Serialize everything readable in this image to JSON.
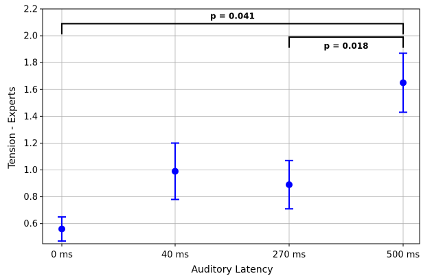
{
  "chart_data": {
    "type": "scatter",
    "categories": [
      "0 ms",
      "40 ms",
      "270 ms",
      "500 ms"
    ],
    "series": [
      {
        "values": [
          0.56,
          0.99,
          0.89,
          1.65
        ],
        "err_low": [
          0.47,
          0.78,
          0.71,
          1.43
        ],
        "err_high": [
          0.65,
          1.2,
          1.07,
          1.87
        ],
        "color": "#0000ff"
      }
    ],
    "xlabel": "Auditory Latency",
    "ylabel": "Tension - Experts",
    "ylim": [
      0.45,
      2.2
    ],
    "yticks": [
      0.6,
      0.8,
      1.0,
      1.2,
      1.4,
      1.6,
      1.8,
      2.0,
      2.2
    ],
    "ytick_labels": [
      "0.6",
      "0.8",
      "1.0",
      "1.2",
      "1.4",
      "1.6",
      "1.8",
      "2.0",
      "2.2"
    ],
    "grid": true,
    "annotations": [
      {
        "text": "p = 0.041",
        "from": 0,
        "to": 3,
        "y": 2.09,
        "y_end": 2.01
      },
      {
        "text": "p = 0.018",
        "from": 2,
        "to": 3,
        "y": 1.99,
        "y_end": 1.91
      }
    ]
  }
}
